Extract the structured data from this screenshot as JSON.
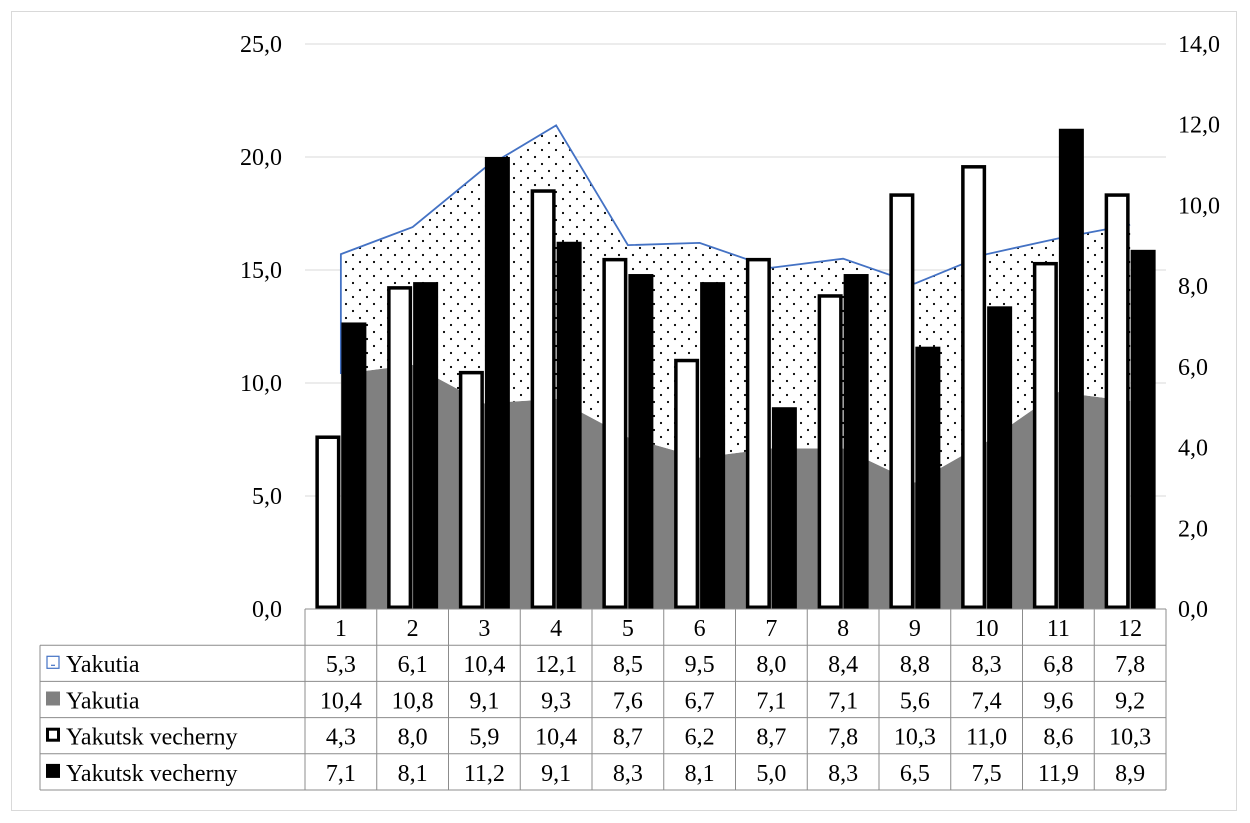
{
  "chart_data": {
    "type": "bar",
    "categories": [
      "1",
      "2",
      "3",
      "4",
      "5",
      "6",
      "7",
      "8",
      "9",
      "10",
      "11",
      "12"
    ],
    "left_axis": {
      "ylim": [
        0,
        25
      ],
      "ticks": [
        "0,0",
        "5,0",
        "10,0",
        "15,0",
        "20,0",
        "25,0"
      ]
    },
    "right_axis": {
      "ylim": [
        0,
        14
      ],
      "ticks": [
        "0,0",
        "2,0",
        "4,0",
        "6,0",
        "8,0",
        "10,0",
        "12,0",
        "14,0"
      ]
    },
    "grid": true,
    "legend": "data-table-bottom",
    "series": [
      {
        "name": "Yakutia",
        "kind": "area-dotted-stacked",
        "axis": "left",
        "color": "#4472c4",
        "values": [
          5.3,
          6.1,
          10.4,
          12.1,
          8.5,
          9.5,
          8.0,
          8.4,
          8.8,
          8.3,
          6.8,
          7.8
        ],
        "labels": [
          "5,3",
          "6,1",
          "10,4",
          "12,1",
          "8,5",
          "9,5",
          "8,0",
          "8,4",
          "8,8",
          "8,3",
          "6,8",
          "7,8"
        ]
      },
      {
        "name": "Yakutia",
        "kind": "area-solid",
        "axis": "left",
        "color": "#808080",
        "values": [
          10.4,
          10.8,
          9.1,
          9.3,
          7.6,
          6.7,
          7.1,
          7.1,
          5.6,
          7.4,
          9.6,
          9.2
        ],
        "labels": [
          "10,4",
          "10,8",
          "9,1",
          "9,3",
          "7,6",
          "6,7",
          "7,1",
          "7,1",
          "5,6",
          "7,4",
          "9,6",
          "9,2"
        ]
      },
      {
        "name": "Yakutsk vecherny",
        "kind": "bar-hollow",
        "axis": "right",
        "color": "#000000",
        "values": [
          4.3,
          8.0,
          5.9,
          10.4,
          8.7,
          6.2,
          8.7,
          7.8,
          10.3,
          11.0,
          8.6,
          10.3
        ],
        "labels": [
          "4,3",
          "8,0",
          "5,9",
          "10,4",
          "8,7",
          "6,2",
          "8,7",
          "7,8",
          "10,3",
          "11,0",
          "8,6",
          "10,3"
        ]
      },
      {
        "name": "Yakutsk vecherny",
        "kind": "bar-solid",
        "axis": "right",
        "color": "#000000",
        "values": [
          7.1,
          8.1,
          11.2,
          9.1,
          8.3,
          8.1,
          5.0,
          8.3,
          6.5,
          7.5,
          11.9,
          8.9
        ],
        "labels": [
          "7,1",
          "8,1",
          "11,2",
          "9,1",
          "8,3",
          "8,1",
          "5,0",
          "8,3",
          "6,5",
          "7,5",
          "11,9",
          "8,9"
        ]
      }
    ]
  }
}
